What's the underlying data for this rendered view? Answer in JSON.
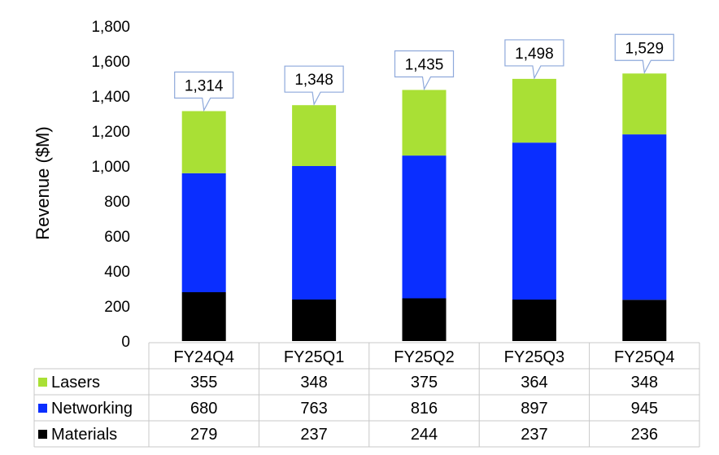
{
  "chart_data": {
    "type": "bar",
    "stacked": true,
    "categories": [
      "FY24Q4",
      "FY25Q1",
      "FY25Q2",
      "FY25Q3",
      "FY25Q4"
    ],
    "series": [
      {
        "name": "Materials",
        "color": "#000000",
        "values": [
          279,
          237,
          244,
          237,
          236
        ]
      },
      {
        "name": "Networking",
        "color": "#0a2eff",
        "values": [
          680,
          763,
          816,
          897,
          945
        ]
      },
      {
        "name": "Lasers",
        "color": "#a9e035",
        "values": [
          355,
          348,
          375,
          364,
          348
        ]
      }
    ],
    "totals": [
      "1,314",
      "1,348",
      "1,435",
      "1,498",
      "1,529"
    ],
    "totals_values": [
      1314,
      1348,
      1435,
      1498,
      1529
    ],
    "ylabel": "Revenue ($M)",
    "ylim": [
      0,
      1800
    ],
    "yticks": [
      0,
      200,
      400,
      600,
      800,
      1000,
      1200,
      1400,
      1600,
      1800
    ],
    "ytick_labels": [
      "0",
      "200",
      "400",
      "600",
      "800",
      "1,000",
      "1,200",
      "1,400",
      "1,600",
      "1,800"
    ],
    "data_table": true,
    "table_row_order": [
      "Lasers",
      "Networking",
      "Materials"
    ],
    "callout_border_color": "#8ea9db"
  }
}
